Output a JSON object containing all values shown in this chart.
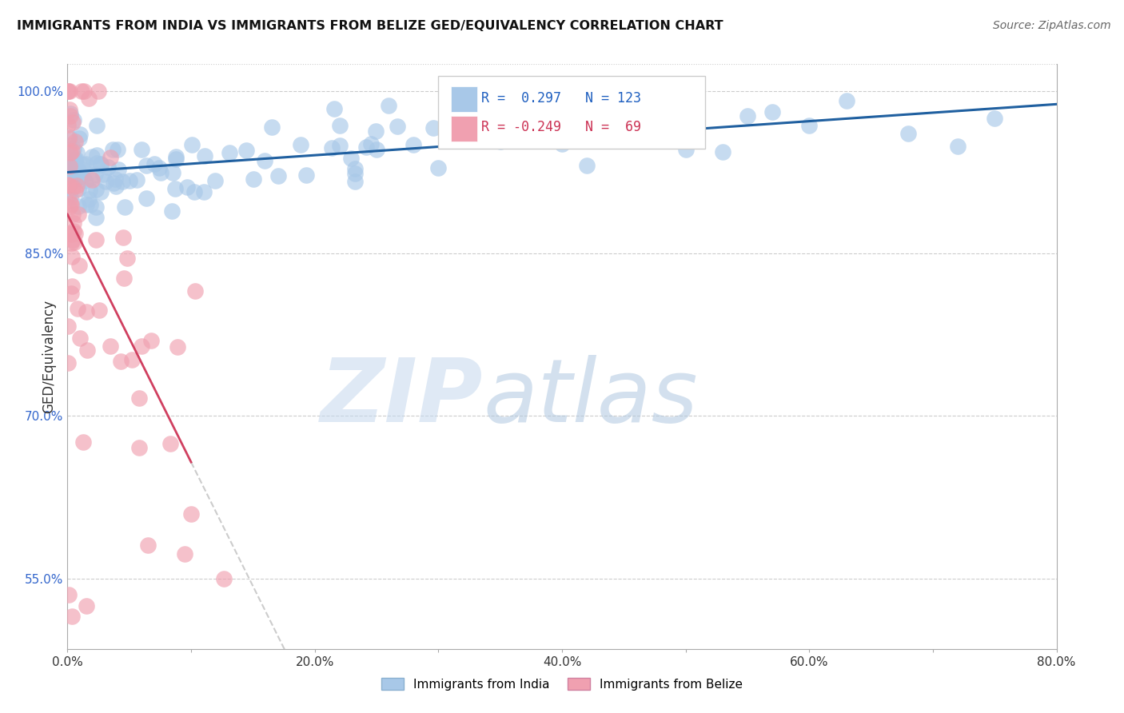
{
  "title": "IMMIGRANTS FROM INDIA VS IMMIGRANTS FROM BELIZE GED/EQUIVALENCY CORRELATION CHART",
  "source": "Source: ZipAtlas.com",
  "ylabel": "GED/Equivalency",
  "xlim": [
    0.0,
    0.8
  ],
  "ylim": [
    0.485,
    1.025
  ],
  "xticks": [
    0.0,
    0.1,
    0.2,
    0.3,
    0.4,
    0.5,
    0.6,
    0.7,
    0.8
  ],
  "xticklabels": [
    "0.0%",
    "",
    "20.0%",
    "",
    "40.0%",
    "",
    "60.0%",
    "",
    "80.0%"
  ],
  "yticks": [
    0.55,
    0.7,
    0.85,
    1.0
  ],
  "yticklabels": [
    "55.0%",
    "70.0%",
    "85.0%",
    "100.0%"
  ],
  "india_color": "#a8c8e8",
  "belize_color": "#f0a0b0",
  "india_R": 0.297,
  "india_N": 123,
  "belize_R": -0.249,
  "belize_N": 69,
  "india_line_color": "#2060a0",
  "belize_line_color": "#d04060",
  "belize_line_dash_color": "#cccccc",
  "watermark_zip": "ZIP",
  "watermark_atlas": "atlas",
  "watermark_color_zip": "#c8d8ec",
  "watermark_color_atlas": "#b8cce0",
  "legend_india_label": "Immigrants from India",
  "legend_belize_label": "Immigrants from Belize"
}
